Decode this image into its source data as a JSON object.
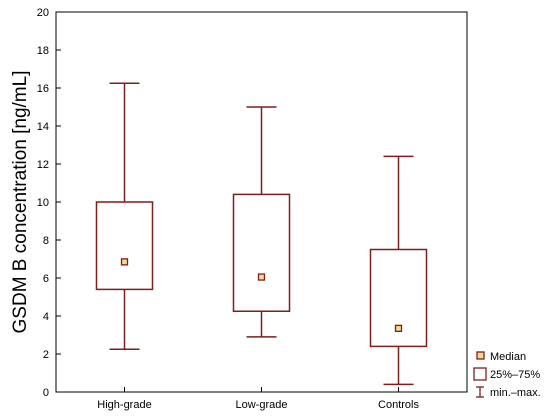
{
  "chart_data": {
    "type": "box",
    "title": "",
    "xlabel": "",
    "ylabel": "GSDM B concentration [ng/mL]",
    "ylim": [
      0,
      20
    ],
    "yticks": [
      0,
      2,
      4,
      6,
      8,
      10,
      12,
      14,
      16,
      18,
      20
    ],
    "grid": false,
    "legend_position": "bottom-right",
    "colors": {
      "box": "#7b1f1f",
      "axis": "#000000"
    },
    "categories": [
      "High-grade",
      "Low-grade",
      "Controls"
    ],
    "boxes": [
      {
        "category": "High-grade",
        "min": 2.25,
        "q1": 5.4,
        "median": 6.85,
        "q3": 10.0,
        "max": 16.25
      },
      {
        "category": "Low-grade",
        "min": 2.9,
        "q1": 4.25,
        "median": 6.05,
        "q3": 10.4,
        "max": 15.0
      },
      {
        "category": "Controls",
        "min": 0.4,
        "q1": 2.4,
        "median": 3.35,
        "q3": 7.5,
        "max": 12.4
      }
    ],
    "legend": {
      "median": "Median",
      "box": "25%–75%",
      "whisker": "min.–max."
    }
  }
}
